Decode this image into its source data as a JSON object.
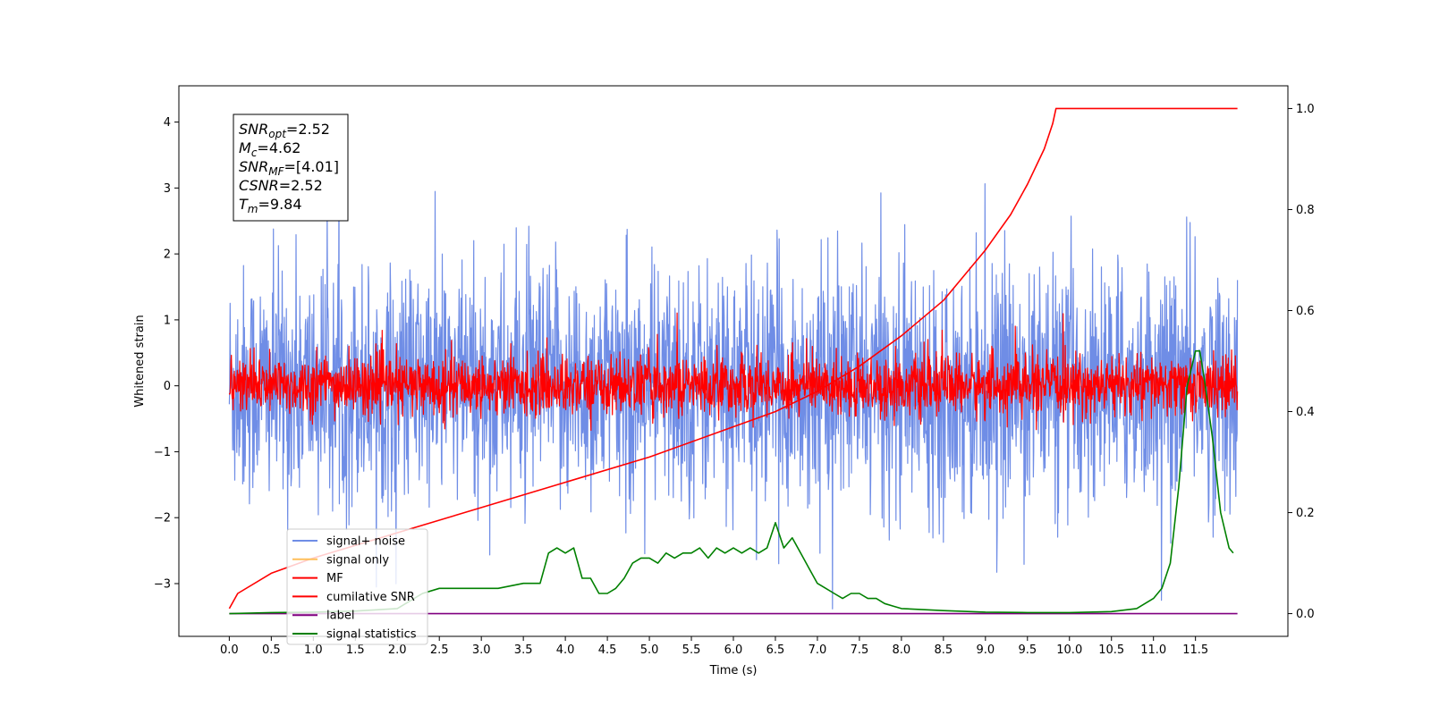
{
  "chart_data": {
    "type": "line",
    "title": "",
    "xlabel": "Time (s)",
    "ylabel": "Whitened strain",
    "xlim": [
      -0.6,
      12.6
    ],
    "ylim": [
      -3.8,
      4.55
    ],
    "y2lim": [
      -0.045,
      1.045
    ],
    "x_ticks": [
      "0.0",
      "0.5",
      "1.0",
      "1.5",
      "2.0",
      "2.5",
      "3.0",
      "3.5",
      "4.0",
      "4.5",
      "5.0",
      "5.5",
      "6.0",
      "6.5",
      "7.0",
      "7.5",
      "8.0",
      "8.5",
      "9.0",
      "9.5",
      "10.0",
      "10.5",
      "11.0",
      "11.5"
    ],
    "y_ticks": [
      "−3",
      "−2",
      "−1",
      "0",
      "1",
      "2",
      "3",
      "4"
    ],
    "y2_ticks": [
      "0.0",
      "0.2",
      "0.4",
      "0.6",
      "0.8",
      "1.0"
    ],
    "grid": false,
    "legend_position": "lower-left",
    "info_box": {
      "lines": [
        {
          "main": "SNR",
          "sub": "opt",
          "value": "=2.52"
        },
        {
          "main": "M",
          "sub": "c",
          "value": "=4.62"
        },
        {
          "main": "SNR",
          "sub": "MF",
          "value": "=[4.01]"
        },
        {
          "main": "CSNR",
          "sub": "",
          "value": "=2.52"
        },
        {
          "main": "T",
          "sub": "m",
          "value": "=9.84"
        }
      ]
    },
    "series": [
      {
        "name": "signal+ noise",
        "color": "#6f8de6",
        "axis": "left",
        "kind": "noise",
        "std": 0.9,
        "x_range": [
          0,
          12.0
        ]
      },
      {
        "name": "signal only",
        "color": "#ffbf5a",
        "axis": "left",
        "kind": "flat",
        "value": 0
      },
      {
        "name": "MF",
        "color": "#ff0000",
        "axis": "left",
        "kind": "noise",
        "std": 0.22,
        "x_range": [
          0,
          12.0
        ]
      },
      {
        "name": "cumilative SNR",
        "color": "#ff0000",
        "axis": "right",
        "x": [
          0,
          0.1,
          0.5,
          1,
          2,
          3,
          4,
          5,
          6,
          6.5,
          7,
          7.5,
          8,
          8.5,
          9,
          9.3,
          9.5,
          9.7,
          9.8,
          9.84,
          10,
          11,
          12.0
        ],
        "values": [
          0.01,
          0.04,
          0.08,
          0.11,
          0.16,
          0.21,
          0.26,
          0.31,
          0.37,
          0.4,
          0.44,
          0.49,
          0.55,
          0.62,
          0.72,
          0.79,
          0.85,
          0.92,
          0.97,
          1.0,
          1.0,
          1.0,
          1.0
        ]
      },
      {
        "name": "label",
        "color": "#800080",
        "axis": "right",
        "x": [
          0,
          12.0
        ],
        "values": [
          0,
          0
        ]
      },
      {
        "name": "signal statistics",
        "color": "#008000",
        "axis": "right",
        "x": [
          0,
          0.5,
          1.0,
          1.5,
          2.0,
          2.3,
          2.5,
          3.0,
          3.2,
          3.5,
          3.7,
          3.8,
          3.9,
          4.0,
          4.1,
          4.2,
          4.3,
          4.4,
          4.5,
          4.6,
          4.7,
          4.8,
          4.9,
          5.0,
          5.1,
          5.2,
          5.3,
          5.4,
          5.5,
          5.6,
          5.7,
          5.8,
          5.9,
          6.0,
          6.1,
          6.2,
          6.3,
          6.4,
          6.5,
          6.6,
          6.7,
          6.8,
          6.9,
          7.0,
          7.1,
          7.2,
          7.3,
          7.4,
          7.5,
          7.6,
          7.7,
          7.8,
          7.9,
          8.0,
          8.5,
          9.0,
          9.5,
          10.0,
          10.5,
          10.8,
          11.0,
          11.1,
          11.2,
          11.3,
          11.4,
          11.5,
          11.55,
          11.6,
          11.7,
          11.8,
          11.9,
          11.95
        ],
        "values": [
          0.0,
          0.002,
          0.003,
          0.005,
          0.01,
          0.04,
          0.05,
          0.05,
          0.05,
          0.06,
          0.06,
          0.12,
          0.13,
          0.12,
          0.13,
          0.07,
          0.07,
          0.04,
          0.04,
          0.05,
          0.07,
          0.1,
          0.11,
          0.11,
          0.1,
          0.12,
          0.11,
          0.12,
          0.12,
          0.13,
          0.11,
          0.13,
          0.12,
          0.13,
          0.12,
          0.13,
          0.12,
          0.13,
          0.18,
          0.13,
          0.15,
          0.12,
          0.09,
          0.06,
          0.05,
          0.04,
          0.03,
          0.04,
          0.04,
          0.03,
          0.03,
          0.02,
          0.015,
          0.01,
          0.006,
          0.003,
          0.002,
          0.002,
          0.004,
          0.01,
          0.03,
          0.05,
          0.1,
          0.25,
          0.45,
          0.52,
          0.52,
          0.47,
          0.35,
          0.2,
          0.13,
          0.12
        ]
      }
    ]
  }
}
